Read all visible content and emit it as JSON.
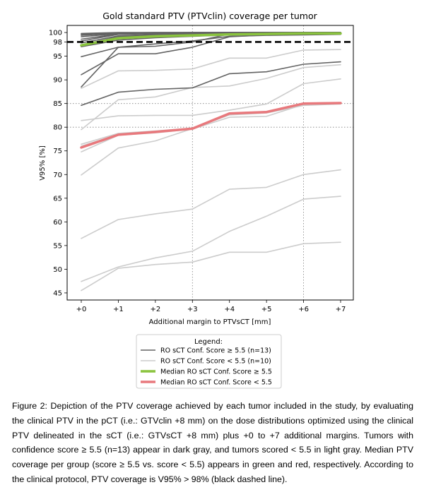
{
  "chart_data": {
    "type": "line",
    "title": "Gold standard PTV (PTVclin) coverage per tumor",
    "xlabel": "Additional margin to PTVsCT [mm]",
    "ylabel": "V95% [%]",
    "categories": [
      "+0",
      "+1",
      "+2",
      "+3",
      "+4",
      "+5",
      "+6",
      "+7"
    ],
    "ylim": [
      43.5,
      101.5
    ],
    "yticks": [
      45,
      50,
      55,
      60,
      65,
      70,
      75,
      80,
      85,
      90,
      95,
      98,
      100
    ],
    "ytick_labels": [
      "45",
      "50",
      "55",
      "60",
      "65",
      "70",
      "75",
      "80",
      "85",
      "90",
      "95",
      "98",
      "100"
    ],
    "grid": {
      "dotted_x": [
        "+3",
        "+6"
      ],
      "dotted_y": [
        80,
        85
      ],
      "style": "dotted",
      "color": "#7f7f7f"
    },
    "threshold": {
      "value": 98,
      "style": "dashed",
      "color": "#000000"
    },
    "legend": {
      "title": "Legend:",
      "position": "below-plot",
      "entries": [
        "RO sCT Conf. Score ≥ 5.5 (n=13)",
        "RO sCT Conf. Score < 5.5 (n=10)",
        "Median RO sCT Conf. Score ≥ 5.5",
        "Median RO sCT Conf. Score < 5.5"
      ]
    },
    "colors": {
      "high": "#636363",
      "low": "#cccccc",
      "median_high": "#8ac43e",
      "median_low": "#e8797d"
    },
    "series": [
      {
        "group": "high",
        "values": [
          84.6,
          87.4,
          88.0,
          88.3,
          91.3,
          91.7,
          93.3,
          93.8
        ]
      },
      {
        "group": "high",
        "values": [
          88.5,
          96.9,
          97.1,
          98.0,
          99.7,
          99.7,
          99.8,
          99.9
        ]
      },
      {
        "group": "high",
        "values": [
          91.1,
          95.5,
          95.5,
          96.9,
          99.1,
          99.5,
          99.6,
          99.7
        ]
      },
      {
        "group": "high",
        "values": [
          94.9,
          96.9,
          97.6,
          98.2,
          99.2,
          99.4,
          99.5,
          99.6
        ]
      },
      {
        "group": "high",
        "values": [
          97.0,
          98.4,
          98.9,
          99.2,
          99.5,
          99.6,
          99.7,
          99.8
        ]
      },
      {
        "group": "high",
        "values": [
          97.4,
          99.1,
          99.4,
          99.5,
          99.6,
          99.7,
          99.8,
          99.9
        ]
      },
      {
        "group": "high",
        "values": [
          97.8,
          99.3,
          99.6,
          99.7,
          99.8,
          99.8,
          99.9,
          99.9
        ]
      },
      {
        "group": "high",
        "values": [
          98.2,
          99.6,
          99.8,
          99.8,
          99.9,
          99.9,
          100.0,
          100.0
        ]
      },
      {
        "group": "high",
        "values": [
          98.6,
          99.7,
          99.8,
          99.9,
          99.9,
          99.9,
          100.0,
          100.0
        ]
      },
      {
        "group": "high",
        "values": [
          99.1,
          99.8,
          99.9,
          99.9,
          100.0,
          100.0,
          100.0,
          100.0
        ]
      },
      {
        "group": "high",
        "values": [
          99.4,
          99.9,
          99.9,
          100.0,
          100.0,
          100.0,
          100.0,
          100.0
        ]
      },
      {
        "group": "high",
        "values": [
          99.6,
          99.9,
          100.0,
          100.0,
          100.0,
          100.0,
          100.0,
          100.0
        ]
      },
      {
        "group": "high",
        "values": [
          99.8,
          100.0,
          100.0,
          100.0,
          100.0,
          100.0,
          100.0,
          100.0
        ]
      },
      {
        "group": "low",
        "values": [
          88.2,
          91.9,
          92.0,
          92.3,
          94.6,
          94.6,
          96.3,
          96.4
        ]
      },
      {
        "group": "low",
        "values": [
          79.5,
          85.8,
          86.4,
          88.4,
          88.7,
          90.3,
          92.6,
          93.2
        ]
      },
      {
        "group": "low",
        "values": [
          81.4,
          82.4,
          82.5,
          82.5,
          83.6,
          84.9,
          89.2,
          90.2
        ]
      },
      {
        "group": "low",
        "values": [
          76.4,
          78.7,
          79.2,
          79.8,
          82.9,
          83.3,
          85.1,
          85.2
        ]
      },
      {
        "group": "low",
        "values": [
          74.8,
          78.3,
          78.8,
          79.6,
          82.1,
          82.3,
          84.8,
          85.0
        ]
      },
      {
        "group": "low",
        "values": [
          69.9,
          75.6,
          77.1,
          79.7,
          82.6,
          83.0,
          84.6,
          84.9
        ]
      },
      {
        "group": "low",
        "values": [
          56.5,
          60.5,
          61.7,
          62.7,
          66.9,
          67.3,
          70.0,
          71.0
        ]
      },
      {
        "group": "low",
        "values": [
          47.4,
          50.5,
          52.4,
          53.8,
          58.0,
          61.2,
          64.8,
          65.4
        ]
      },
      {
        "group": "low",
        "values": [
          45.5,
          50.2,
          51.0,
          51.5,
          53.6,
          53.6,
          55.4,
          55.7
        ]
      },
      {
        "group": "low",
        "values": [
          76.0,
          78.5,
          79.0,
          79.8,
          83.0,
          83.3,
          85.0,
          85.1
        ]
      },
      {
        "group": "median_high",
        "values": [
          97.3,
          98.8,
          99.2,
          99.4,
          99.6,
          99.7,
          99.8,
          99.8
        ]
      },
      {
        "group": "median_low",
        "values": [
          75.7,
          78.4,
          79.0,
          79.7,
          82.9,
          83.2,
          85.0,
          85.1
        ]
      }
    ]
  },
  "caption": "Figure 2: Depiction of the PTV coverage achieved by each tumor included in the study, by evaluating the clinical PTV in the pCT (i.e.: GTVclin +8 mm) on the dose distributions optimized using the clinical PTV delineated in the sCT (i.e.: GTVsCT +8 mm) plus +0 to +7 additional margins. Tumors with confidence score ≥ 5.5 (n=13) appear in dark gray, and tumors scored < 5.5 in light gray. Median PTV coverage per group (score ≥ 5.5 vs. score < 5.5) appears in green and red, respectively. According to the clinical protocol, PTV coverage is V95% > 98% (black dashed line)."
}
